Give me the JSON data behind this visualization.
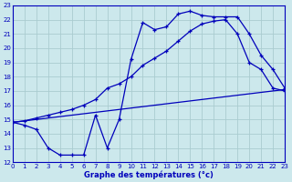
{
  "xlabel": "Graphe des températures (°c)",
  "bg_color": "#cce8ec",
  "line_color": "#0000bb",
  "grid_color": "#aaccd0",
  "ylim": [
    12,
    23
  ],
  "xlim": [
    0,
    23
  ],
  "yticks": [
    12,
    13,
    14,
    15,
    16,
    17,
    18,
    19,
    20,
    21,
    22,
    23
  ],
  "xticks": [
    0,
    1,
    2,
    3,
    4,
    5,
    6,
    7,
    8,
    9,
    10,
    11,
    12,
    13,
    14,
    15,
    16,
    17,
    18,
    19,
    20,
    21,
    22,
    23
  ],
  "line1_x": [
    0,
    1,
    2,
    3,
    4,
    5,
    6,
    7,
    8,
    9,
    10,
    11,
    12,
    13,
    14,
    15,
    16,
    17,
    18,
    19,
    20,
    21,
    22,
    23
  ],
  "line1_y": [
    14.8,
    14.6,
    14.3,
    13.0,
    12.5,
    12.5,
    12.5,
    15.3,
    13.0,
    15.0,
    19.2,
    21.8,
    21.3,
    21.5,
    22.4,
    22.6,
    22.3,
    22.2,
    22.2,
    22.2,
    21.0,
    19.5,
    18.5,
    17.2
  ],
  "line2_x": [
    0,
    23
  ],
  "line2_y": [
    14.8,
    17.1
  ],
  "line3_x": [
    0,
    1,
    2,
    3,
    4,
    5,
    6,
    7,
    8,
    9,
    10,
    11,
    12,
    13,
    14,
    15,
    16,
    17,
    18,
    19,
    20,
    21,
    22,
    23
  ],
  "line3_y": [
    14.8,
    14.9,
    15.1,
    15.3,
    15.5,
    15.7,
    16.0,
    16.4,
    17.2,
    17.5,
    18.0,
    18.8,
    19.3,
    19.8,
    20.5,
    21.2,
    21.7,
    21.9,
    22.0,
    21.0,
    19.0,
    18.5,
    17.2,
    17.0
  ]
}
